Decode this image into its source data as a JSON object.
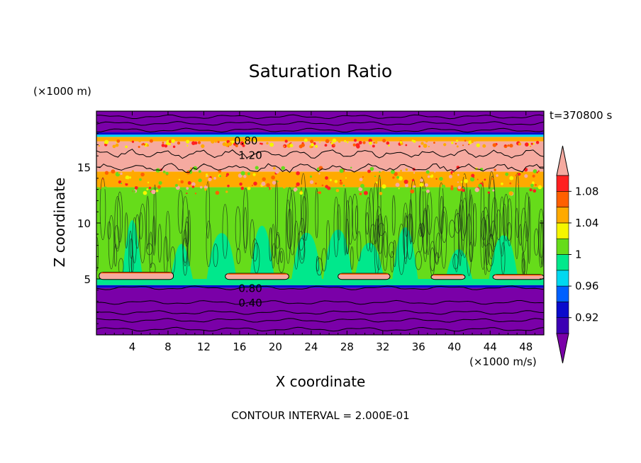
{
  "chart_data": {
    "type": "heatmap",
    "title": "Saturation Ratio",
    "xlabel": "X coordinate",
    "ylabel": "Z coordinate",
    "x_unit": "(×1000 m/s)",
    "y_unit": "(×1000 m)",
    "time_label": "t=370800 s",
    "contour_interval_text": "CONTOUR INTERVAL = 2.000E-01",
    "xlim": [
      0,
      50
    ],
    "ylim": [
      0,
      20
    ],
    "x_ticks": [
      4,
      8,
      12,
      16,
      20,
      24,
      28,
      32,
      36,
      40,
      44,
      48
    ],
    "y_ticks": [
      5,
      10,
      15
    ],
    "colorbar": {
      "levels": [
        0.9,
        0.92,
        0.94,
        0.96,
        0.98,
        1.0,
        1.02,
        1.04,
        1.06,
        1.08,
        1.1
      ],
      "tick_labels": [
        "0.92",
        "0.96",
        "1",
        "1.04",
        "1.08"
      ],
      "tick_values": [
        0.92,
        0.96,
        1.0,
        1.04,
        1.08
      ],
      "colors": [
        "#7a00a8",
        "#3c00b4",
        "#0a0acc",
        "#0060ff",
        "#00d8f0",
        "#00e88c",
        "#66dc1a",
        "#f5f500",
        "#ffaa00",
        "#ff6000",
        "#ff2020",
        "#f5aaa0"
      ]
    },
    "bands": [
      {
        "z0": 0,
        "z1": 4.2,
        "value": 0.88
      },
      {
        "z0": 4.2,
        "z1": 4.45,
        "value": 0.93
      },
      {
        "z0": 4.45,
        "z1": 5.0,
        "value": 0.99
      },
      {
        "z0": 5.0,
        "z1": 13.2,
        "value": 1.01
      },
      {
        "z0": 13.2,
        "z1": 14.6,
        "value": 1.04
      },
      {
        "z0": 14.6,
        "z1": 17.3,
        "value": 1.12
      },
      {
        "z0": 17.3,
        "z1": 17.7,
        "value": 1.05
      },
      {
        "z0": 17.7,
        "z1": 17.9,
        "value": 0.97
      },
      {
        "z0": 17.9,
        "z1": 18.1,
        "value": 0.93
      },
      {
        "z0": 18.1,
        "z1": 20,
        "value": 0.88
      }
    ],
    "supersat_patches": [
      {
        "x0": 0.3,
        "x1": 8.6,
        "z0": 4.95,
        "z1": 5.6
      },
      {
        "x0": 14.4,
        "x1": 21.5,
        "z0": 4.95,
        "z1": 5.5
      },
      {
        "x0": 27.0,
        "x1": 32.8,
        "z0": 4.95,
        "z1": 5.5
      },
      {
        "x0": 37.4,
        "x1": 41.2,
        "z0": 4.95,
        "z1": 5.4
      },
      {
        "x0": 44.3,
        "x1": 50.0,
        "z0": 4.95,
        "z1": 5.4
      }
    ],
    "contour_labels": [
      {
        "text": "0.80",
        "x": 16.7,
        "z": 17.4
      },
      {
        "text": "1.20",
        "x": 17.2,
        "z": 16.1
      },
      {
        "text": "0.80",
        "x": 17.2,
        "z": 4.2
      },
      {
        "text": "0.40",
        "x": 17.2,
        "z": 2.9
      }
    ],
    "contour_levels_z": [
      0.5,
      1.3,
      2.0,
      2.9,
      4.2,
      18.3,
      18.9,
      19.5
    ]
  }
}
